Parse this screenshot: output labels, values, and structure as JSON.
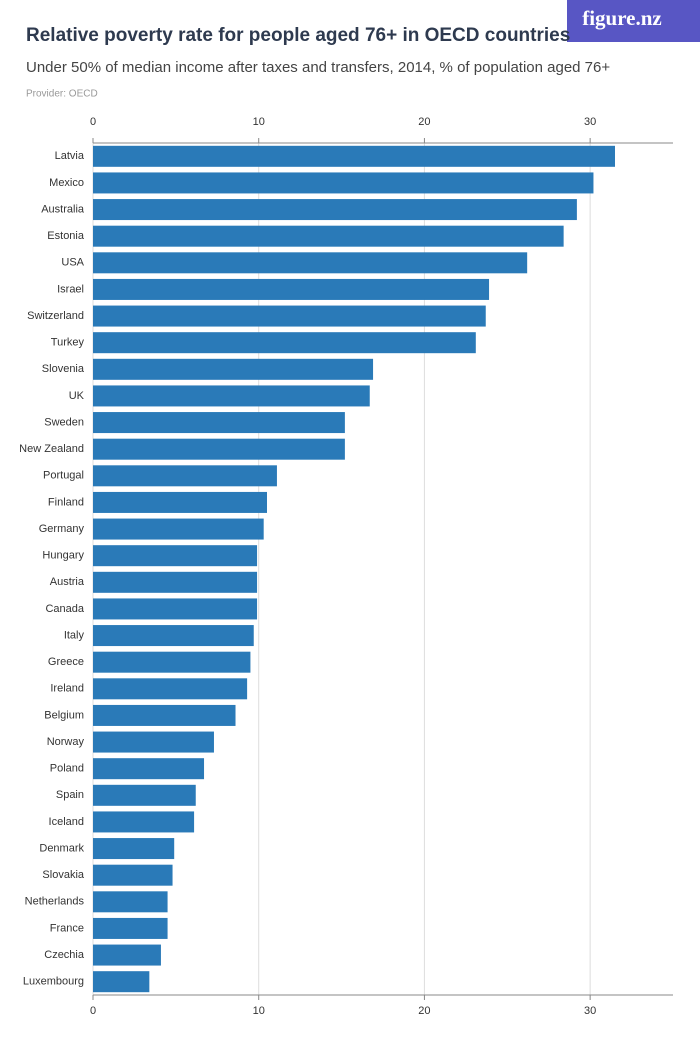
{
  "logo": "figure.nz",
  "chart_data": {
    "type": "bar",
    "orientation": "horizontal",
    "title": "Relative poverty rate for people aged 76+ in OECD countries",
    "subtitle": "Under 50% of median income after taxes and transfers, 2014, % of population aged 76+",
    "source": "Provider: OECD",
    "categories": [
      "Latvia",
      "Mexico",
      "Australia",
      "Estonia",
      "USA",
      "Israel",
      "Switzerland",
      "Turkey",
      "Slovenia",
      "UK",
      "Sweden",
      "New Zealand",
      "Portugal",
      "Finland",
      "Germany",
      "Hungary",
      "Austria",
      "Canada",
      "Italy",
      "Greece",
      "Ireland",
      "Belgium",
      "Norway",
      "Poland",
      "Spain",
      "Iceland",
      "Denmark",
      "Slovakia",
      "Netherlands",
      "France",
      "Czechia",
      "Luxembourg"
    ],
    "values": [
      31.5,
      30.2,
      29.2,
      28.4,
      26.2,
      23.9,
      23.7,
      23.1,
      16.9,
      16.7,
      15.2,
      15.2,
      11.1,
      10.5,
      10.3,
      9.9,
      9.9,
      9.9,
      9.7,
      9.5,
      9.3,
      8.6,
      7.3,
      6.7,
      6.2,
      6.1,
      4.9,
      4.8,
      4.5,
      4.5,
      4.1,
      3.4
    ],
    "color": "#2a7ab8",
    "xlim": [
      0,
      35
    ],
    "xticks": [
      0,
      10,
      20,
      30
    ],
    "grid": true
  }
}
